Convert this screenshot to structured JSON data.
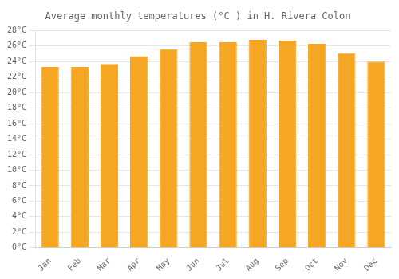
{
  "chart_data": {
    "type": "bar",
    "title": "Average monthly temperatures (°C ) in H. Rivera Colon",
    "categories": [
      "Jan",
      "Feb",
      "Mar",
      "Apr",
      "May",
      "Jun",
      "Jul",
      "Aug",
      "Sep",
      "Oct",
      "Nov",
      "Dec"
    ],
    "values": [
      23.3,
      23.3,
      23.7,
      24.7,
      25.6,
      26.5,
      26.5,
      26.8,
      26.7,
      26.3,
      25.1,
      24.0
    ],
    "color": "#F5A623",
    "ylim": [
      0,
      28
    ],
    "yticks": [
      {
        "value": 0,
        "label": "0°C"
      },
      {
        "value": 2,
        "label": "2°C"
      },
      {
        "value": 4,
        "label": "4°C"
      },
      {
        "value": 6,
        "label": "6°C"
      },
      {
        "value": 8,
        "label": "8°C"
      },
      {
        "value": 10,
        "label": "10°C"
      },
      {
        "value": 12,
        "label": "12°C"
      },
      {
        "value": 14,
        "label": "14°C"
      },
      {
        "value": 16,
        "label": "16°C"
      },
      {
        "value": 18,
        "label": "18°C"
      },
      {
        "value": 20,
        "label": "20°C"
      },
      {
        "value": 22,
        "label": "22°C"
      },
      {
        "value": 24,
        "label": "24°C"
      },
      {
        "value": 26,
        "label": "26°C"
      },
      {
        "value": 28,
        "label": "28°C"
      }
    ],
    "grid": true
  }
}
